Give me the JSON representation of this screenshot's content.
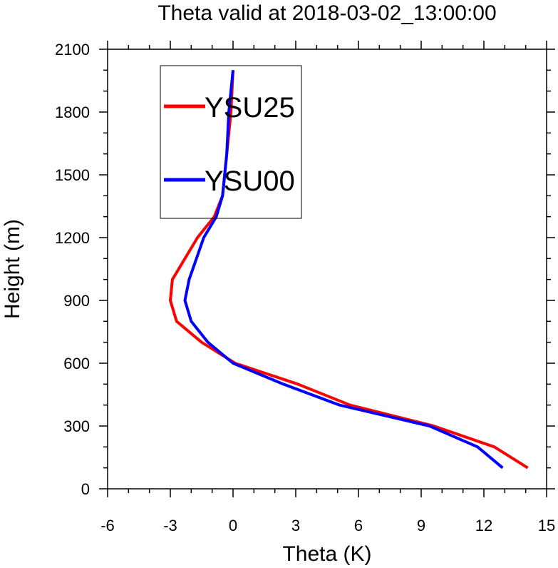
{
  "chart_data": {
    "type": "line",
    "title": "Theta valid at 2018-03-02_13:00:00",
    "xlabel": "Theta (K)",
    "ylabel": "Height (m)",
    "xlim": [
      -6,
      15
    ],
    "ylim": [
      0,
      2100
    ],
    "xticks": [
      -6,
      -3,
      0,
      3,
      6,
      9,
      12,
      15
    ],
    "yticks": [
      0,
      300,
      600,
      900,
      1200,
      1500,
      1800,
      2100
    ],
    "grid": false,
    "legend_position": "top-left",
    "series": [
      {
        "name": "YSU25",
        "color": "#ff0000",
        "points": [
          {
            "theta": 14.1,
            "height": 100
          },
          {
            "theta": 12.5,
            "height": 200
          },
          {
            "theta": 9.6,
            "height": 300
          },
          {
            "theta": 5.6,
            "height": 400
          },
          {
            "theta": 3.1,
            "height": 500
          },
          {
            "theta": 0.1,
            "height": 600
          },
          {
            "theta": -1.5,
            "height": 700
          },
          {
            "theta": -2.7,
            "height": 800
          },
          {
            "theta": -3.0,
            "height": 900
          },
          {
            "theta": -2.9,
            "height": 1000
          },
          {
            "theta": -1.7,
            "height": 1200
          },
          {
            "theta": -0.9,
            "height": 1300
          },
          {
            "theta": -0.5,
            "height": 1400
          },
          {
            "theta": -0.3,
            "height": 1600
          },
          {
            "theta": -0.1,
            "height": 1800
          },
          {
            "theta": 0.0,
            "height": 2000
          }
        ]
      },
      {
        "name": "YSU00",
        "color": "#0000ff",
        "points": [
          {
            "theta": 12.9,
            "height": 100
          },
          {
            "theta": 11.7,
            "height": 200
          },
          {
            "theta": 9.4,
            "height": 300
          },
          {
            "theta": 5.1,
            "height": 400
          },
          {
            "theta": 2.4,
            "height": 500
          },
          {
            "theta": 0.0,
            "height": 600
          },
          {
            "theta": -1.2,
            "height": 700
          },
          {
            "theta": -2.0,
            "height": 800
          },
          {
            "theta": -2.3,
            "height": 900
          },
          {
            "theta": -2.1,
            "height": 1000
          },
          {
            "theta": -1.4,
            "height": 1200
          },
          {
            "theta": -0.8,
            "height": 1300
          },
          {
            "theta": -0.5,
            "height": 1400
          },
          {
            "theta": -0.3,
            "height": 1600
          },
          {
            "theta": -0.2,
            "height": 1800
          },
          {
            "theta": 0.0,
            "height": 2000
          }
        ]
      }
    ]
  }
}
